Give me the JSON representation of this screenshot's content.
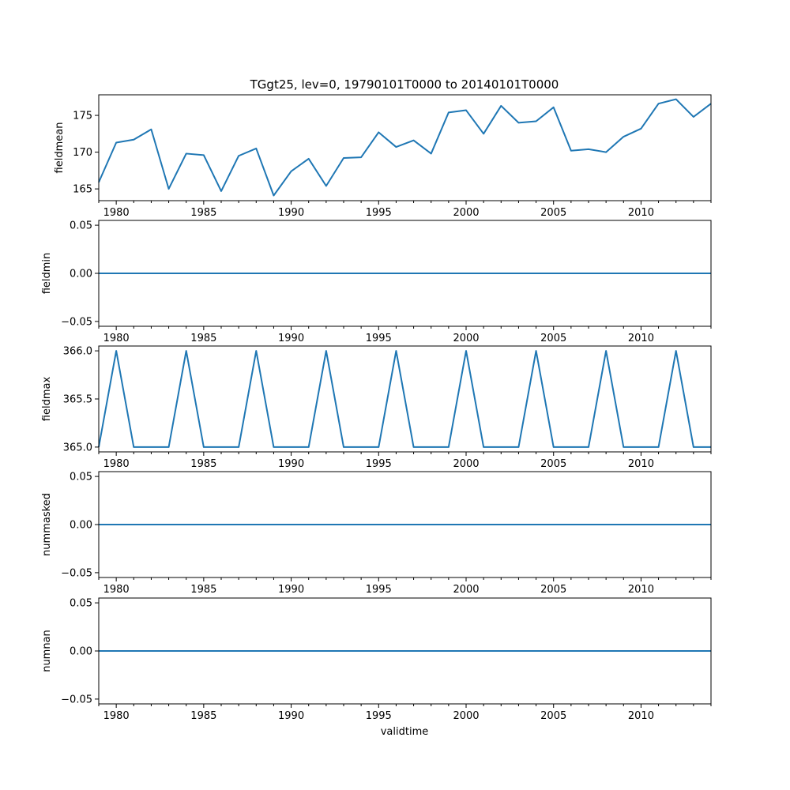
{
  "chart_data": {
    "type": "line",
    "title": "TGgt25, lev=0, 19790101T0000 to 20140101T0000",
    "xlabel": "validtime",
    "line_color": "#1f77b4",
    "xlim": [
      1979,
      2014
    ],
    "x_ticks": [
      1980,
      1985,
      1990,
      1995,
      2000,
      2005,
      2010
    ],
    "x_tick_labels": [
      "1980",
      "1985",
      "1990",
      "1995",
      "2000",
      "2005",
      "2010"
    ],
    "x": [
      1979,
      1980,
      1981,
      1982,
      1983,
      1984,
      1985,
      1986,
      1987,
      1988,
      1989,
      1990,
      1991,
      1992,
      1993,
      1994,
      1995,
      1996,
      1997,
      1998,
      1999,
      2000,
      2001,
      2002,
      2003,
      2004,
      2005,
      2006,
      2007,
      2008,
      2009,
      2010,
      2011,
      2012,
      2013,
      2014
    ],
    "panels": [
      {
        "ylabel": "fieldmean",
        "ylim": [
          163.4,
          177.8
        ],
        "y_ticks": [
          165,
          170,
          175
        ],
        "y_tick_labels": [
          "165",
          "170",
          "175"
        ],
        "values": [
          165.9,
          171.3,
          171.7,
          173.1,
          165.0,
          169.8,
          169.6,
          164.7,
          169.5,
          170.5,
          164.1,
          167.4,
          169.1,
          165.4,
          169.2,
          169.3,
          172.7,
          170.7,
          171.6,
          169.8,
          175.4,
          175.7,
          172.5,
          176.3,
          174.0,
          174.2,
          176.1,
          170.2,
          170.4,
          170.0,
          172.1,
          173.2,
          176.6,
          177.2,
          174.8,
          176.6
        ]
      },
      {
        "ylabel": "fieldmin",
        "ylim": [
          -0.055,
          0.055
        ],
        "y_ticks": [
          -0.05,
          0.0,
          0.05
        ],
        "y_tick_labels": [
          "−0.05",
          "0.00",
          "0.05"
        ],
        "values": [
          0,
          0,
          0,
          0,
          0,
          0,
          0,
          0,
          0,
          0,
          0,
          0,
          0,
          0,
          0,
          0,
          0,
          0,
          0,
          0,
          0,
          0,
          0,
          0,
          0,
          0,
          0,
          0,
          0,
          0,
          0,
          0,
          0,
          0,
          0,
          0
        ]
      },
      {
        "ylabel": "fieldmax",
        "ylim": [
          364.95,
          366.05
        ],
        "y_ticks": [
          365.0,
          365.5,
          366.0
        ],
        "y_tick_labels": [
          "365.0",
          "365.5",
          "366.0"
        ],
        "values": [
          365,
          366,
          365,
          365,
          365,
          366,
          365,
          365,
          365,
          366,
          365,
          365,
          365,
          366,
          365,
          365,
          365,
          366,
          365,
          365,
          365,
          366,
          365,
          365,
          365,
          366,
          365,
          365,
          365,
          366,
          365,
          365,
          365,
          366,
          365,
          365
        ]
      },
      {
        "ylabel": "nummasked",
        "ylim": [
          -0.055,
          0.055
        ],
        "y_ticks": [
          -0.05,
          0.0,
          0.05
        ],
        "y_tick_labels": [
          "−0.05",
          "0.00",
          "0.05"
        ],
        "values": [
          0,
          0,
          0,
          0,
          0,
          0,
          0,
          0,
          0,
          0,
          0,
          0,
          0,
          0,
          0,
          0,
          0,
          0,
          0,
          0,
          0,
          0,
          0,
          0,
          0,
          0,
          0,
          0,
          0,
          0,
          0,
          0,
          0,
          0,
          0,
          0
        ]
      },
      {
        "ylabel": "numnan",
        "ylim": [
          -0.055,
          0.055
        ],
        "y_ticks": [
          -0.05,
          0.0,
          0.05
        ],
        "y_tick_labels": [
          "−0.05",
          "0.00",
          "0.05"
        ],
        "values": [
          0,
          0,
          0,
          0,
          0,
          0,
          0,
          0,
          0,
          0,
          0,
          0,
          0,
          0,
          0,
          0,
          0,
          0,
          0,
          0,
          0,
          0,
          0,
          0,
          0,
          0,
          0,
          0,
          0,
          0,
          0,
          0,
          0,
          0,
          0,
          0
        ]
      }
    ]
  }
}
